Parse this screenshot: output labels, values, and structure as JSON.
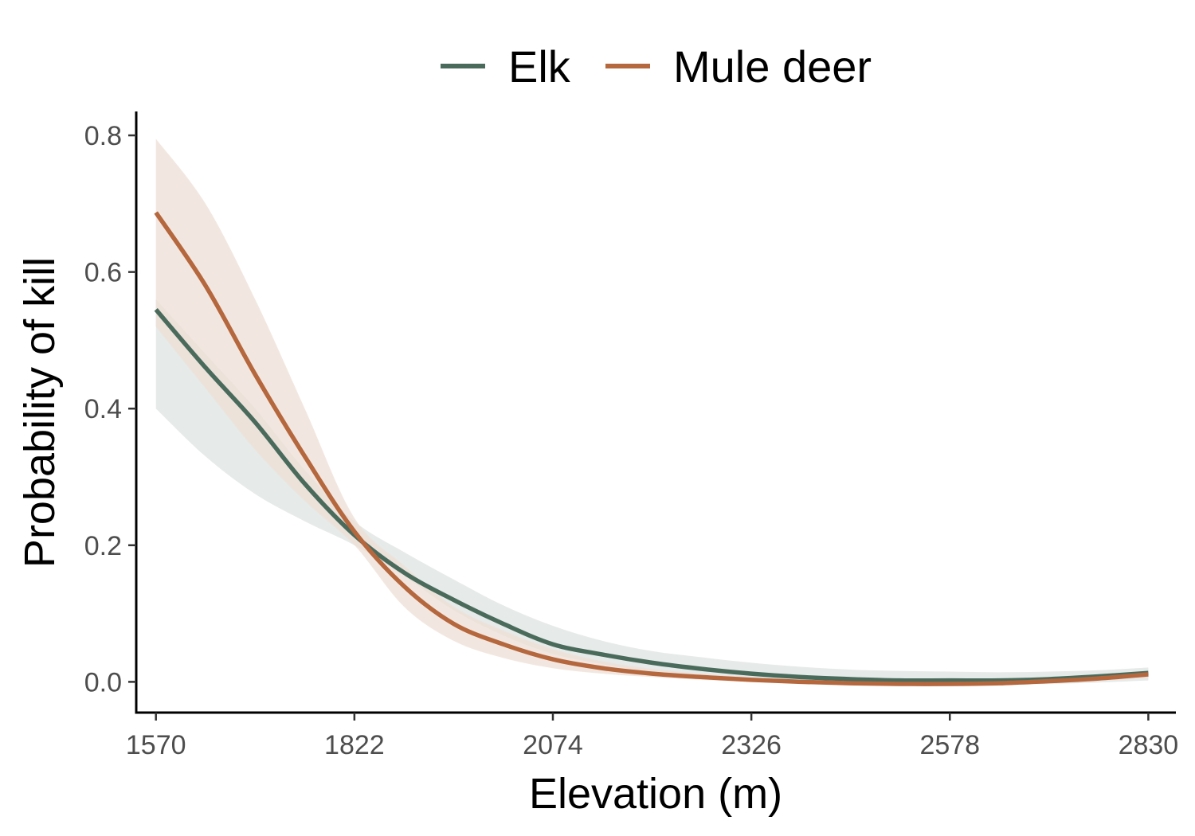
{
  "chart_data": {
    "type": "line",
    "xlabel": "Elevation (m)",
    "ylabel": "Probability of kill",
    "xlim": [
      1545,
      2865
    ],
    "ylim": [
      -0.045,
      0.835
    ],
    "x_ticks": [
      1570,
      1822,
      2074,
      2326,
      2578,
      2830
    ],
    "x_tick_labels": [
      "1570",
      "1822",
      "2074",
      "2326",
      "2578",
      "2830"
    ],
    "y_ticks": [
      0.0,
      0.2,
      0.4,
      0.6,
      0.8
    ],
    "y_tick_labels": [
      "0.0",
      "0.2",
      "0.4",
      "0.6",
      "0.8"
    ],
    "grid": false,
    "legend_position": "top",
    "x": [
      1570,
      1633,
      1696,
      1759,
      1822,
      1885,
      1948,
      2011,
      2074,
      2137,
      2200,
      2263,
      2326,
      2389,
      2452,
      2515,
      2578,
      2641,
      2704,
      2767,
      2830
    ],
    "series": [
      {
        "name": "Elk",
        "color": "#4a6b5c",
        "band_color": "#dde3e0",
        "values": [
          0.545,
          0.46,
          0.38,
          0.29,
          0.215,
          0.16,
          0.12,
          0.085,
          0.055,
          0.04,
          0.028,
          0.019,
          0.012,
          0.007,
          0.004,
          0.002,
          0.002,
          0.002,
          0.004,
          0.008,
          0.013
        ],
        "lower": [
          0.4,
          0.33,
          0.275,
          0.235,
          0.2,
          0.155,
          0.105,
          0.068,
          0.041,
          0.026,
          0.014,
          0.006,
          0.002,
          0.0,
          -0.002,
          -0.003,
          -0.004,
          -0.004,
          -0.003,
          -0.001,
          0.002
        ],
        "upper": [
          0.56,
          0.48,
          0.4,
          0.31,
          0.235,
          0.19,
          0.15,
          0.112,
          0.082,
          0.06,
          0.045,
          0.036,
          0.028,
          0.022,
          0.018,
          0.016,
          0.015,
          0.014,
          0.015,
          0.017,
          0.021
        ]
      },
      {
        "name": "Mule deer",
        "color": "#b5673e",
        "band_color": "#eddfd6",
        "values": [
          0.687,
          0.58,
          0.45,
          0.33,
          0.22,
          0.14,
          0.085,
          0.055,
          0.033,
          0.02,
          0.012,
          0.007,
          0.003,
          0.0,
          -0.002,
          -0.003,
          -0.003,
          -0.002,
          0.001,
          0.005,
          0.011
        ],
        "lower": [
          0.52,
          0.43,
          0.34,
          0.265,
          0.2,
          0.11,
          0.06,
          0.035,
          0.02,
          0.012,
          0.007,
          0.003,
          0.0,
          -0.002,
          -0.004,
          -0.005,
          -0.005,
          -0.004,
          -0.002,
          0.002,
          0.006
        ],
        "upper": [
          0.795,
          0.7,
          0.56,
          0.4,
          0.24,
          0.17,
          0.11,
          0.075,
          0.048,
          0.03,
          0.019,
          0.012,
          0.007,
          0.003,
          0.001,
          0.0,
          0.0,
          0.001,
          0.004,
          0.009,
          0.016
        ]
      }
    ]
  }
}
